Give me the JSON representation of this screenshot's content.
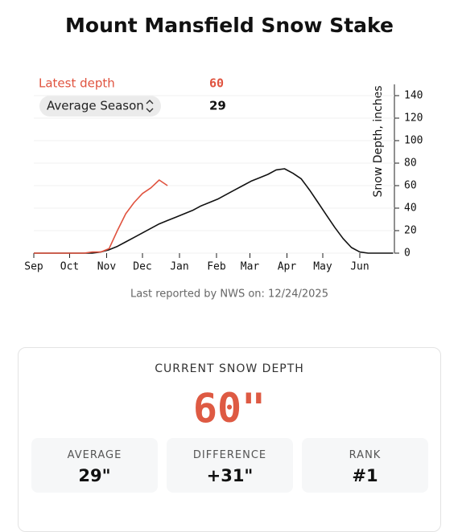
{
  "chart_data": {
    "type": "line",
    "title": "Mount Mansfield Snow Stake",
    "ylabel": "Snow Depth, inches",
    "x": [
      0,
      7,
      14,
      21,
      28,
      35,
      42,
      49,
      56,
      63,
      70,
      77,
      84,
      91,
      98,
      105,
      112,
      119,
      126,
      133,
      140,
      147,
      154,
      161,
      168,
      175,
      182,
      189,
      196,
      203,
      210,
      217,
      224,
      231,
      238,
      245,
      252,
      259,
      266,
      273,
      280,
      287,
      294,
      301
    ],
    "series": [
      {
        "name": "Latest depth",
        "color": "#e0533f",
        "values": [
          0,
          0,
          0,
          0,
          0,
          0,
          0,
          1,
          1,
          4,
          20,
          35,
          45,
          53,
          58,
          65,
          60,
          null,
          null,
          null,
          null,
          null,
          null,
          null,
          null,
          null,
          null,
          null,
          null,
          null,
          null,
          null,
          null,
          null,
          null,
          null,
          null,
          null,
          null,
          null,
          null,
          null,
          null,
          null
        ]
      },
      {
        "name": "Average Season",
        "color": "#111111",
        "values": [
          0,
          0,
          0,
          0,
          0,
          0,
          0,
          0,
          1,
          3,
          6,
          10,
          14,
          18,
          22,
          26,
          29,
          32,
          35,
          38,
          42,
          45,
          48,
          52,
          56,
          60,
          64,
          67,
          70,
          74,
          75,
          71,
          66,
          56,
          45,
          34,
          23,
          13,
          5,
          1,
          0,
          0,
          0,
          0
        ]
      }
    ],
    "legend_values": [
      60,
      29
    ],
    "xlim": [
      0,
      302
    ],
    "xticks": [
      {
        "value": 0,
        "label": "Sep"
      },
      {
        "value": 30,
        "label": "Oct"
      },
      {
        "value": 61,
        "label": "Nov"
      },
      {
        "value": 91,
        "label": "Dec"
      },
      {
        "value": 122,
        "label": "Jan"
      },
      {
        "value": 153,
        "label": "Feb"
      },
      {
        "value": 181,
        "label": "Mar"
      },
      {
        "value": 212,
        "label": "Apr"
      },
      {
        "value": 242,
        "label": "May"
      },
      {
        "value": 273,
        "label": "Jun"
      }
    ],
    "ylim": [
      0,
      150
    ],
    "yticks": [
      0,
      20,
      40,
      60,
      80,
      100,
      120,
      140
    ],
    "note": "Last reported by NWS on: 12/24/2025"
  },
  "card": {
    "title": "CURRENT SNOW DEPTH",
    "value": "60\"",
    "stats": [
      {
        "label": "AVERAGE",
        "value": "29\""
      },
      {
        "label": "DIFFERENCE",
        "value": "+31\""
      },
      {
        "label": "RANK",
        "value": "#1"
      }
    ]
  }
}
